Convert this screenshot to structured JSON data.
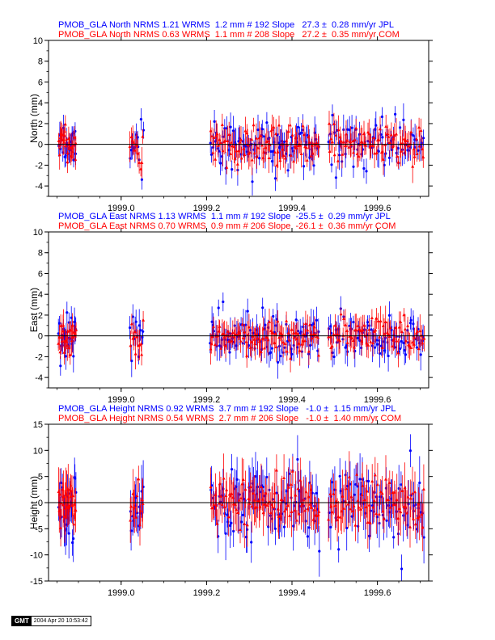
{
  "colors": {
    "jpl": "#0000ff",
    "com": "#ff0000",
    "axis": "#000000"
  },
  "stamp": {
    "logo": "GMT",
    "timestamp": "2004 Apr 20 10:53:42"
  },
  "chart_data": [
    {
      "type": "scatter",
      "component": "North",
      "ylabel": "North (mm)",
      "xlim": [
        1998.83,
        1999.72
      ],
      "ylim": [
        -5,
        10
      ],
      "yticks": [
        "-4",
        "-2",
        "0",
        "2",
        "4",
        "6",
        "8",
        "10"
      ],
      "xticks": [
        "1999.0",
        "1999.2",
        "1999.4",
        "1999.6"
      ],
      "grid": false,
      "series": [
        {
          "label": "PMOB_GLA North NRMS 1.21 WRMS  1.2 mm # 192 Slope   27.3 ±  0.28 mm/yr JPL",
          "color": "blue",
          "marker": "circle",
          "n_points": 192,
          "nrms": 1.21,
          "wrms_mm": 1.2,
          "slope_mm_yr": 27.3,
          "slope_sigma": 0.28
        },
        {
          "label": "PMOB_GLA North NRMS 0.63 WRMS  1.1 mm # 208 Slope   27.2 ±  0.35 mm/yr COM",
          "color": "red",
          "marker": "triangle",
          "n_points": 208,
          "nrms": 0.63,
          "wrms_mm": 1.1,
          "slope_mm_yr": 27.2,
          "slope_sigma": 0.35
        }
      ]
    },
    {
      "type": "scatter",
      "component": "East",
      "ylabel": "East (mm)",
      "xlim": [
        1998.83,
        1999.72
      ],
      "ylim": [
        -5,
        10
      ],
      "yticks": [
        "-4",
        "-2",
        "0",
        "2",
        "4",
        "6",
        "8",
        "10"
      ],
      "xticks": [
        "1999.0",
        "1999.2",
        "1999.4",
        "1999.6"
      ],
      "grid": false,
      "series": [
        {
          "label": "PMOB_GLA East NRMS 1.13 WRMS  1.1 mm # 192 Slope  -25.5 ±  0.29 mm/yr JPL",
          "color": "blue",
          "marker": "circle",
          "n_points": 192,
          "nrms": 1.13,
          "wrms_mm": 1.1,
          "slope_mm_yr": -25.5,
          "slope_sigma": 0.29
        },
        {
          "label": "PMOB_GLA East NRMS 0.70 WRMS  0.9 mm # 206 Slope  -26.1 ±  0.36 mm/yr COM",
          "color": "red",
          "marker": "triangle",
          "n_points": 206,
          "nrms": 0.7,
          "wrms_mm": 0.9,
          "slope_mm_yr": -26.1,
          "slope_sigma": 0.36
        }
      ]
    },
    {
      "type": "scatter",
      "component": "Height",
      "ylabel": "Height (mm)",
      "xlim": [
        1998.83,
        1999.72
      ],
      "ylim": [
        -15,
        15
      ],
      "yticks": [
        "-15",
        "-10",
        "-5",
        "0",
        "5",
        "10",
        "15"
      ],
      "xticks": [
        "1999.0",
        "1999.2",
        "1999.4",
        "1999.6"
      ],
      "grid": false,
      "series": [
        {
          "label": "PMOB_GLA Height NRMS 0.92 WRMS  3.7 mm # 192 Slope   -1.0 ±  1.15 mm/yr JPL",
          "color": "blue",
          "marker": "circle",
          "n_points": 192,
          "nrms": 0.92,
          "wrms_mm": 3.7,
          "slope_mm_yr": -1.0,
          "slope_sigma": 1.15
        },
        {
          "label": "PMOB_GLA Height NRMS 0.54 WRMS  2.7 mm # 206 Slope   -1.0 ±  1.40 mm/yr COM",
          "color": "red",
          "marker": "triangle",
          "n_points": 206,
          "nrms": 0.54,
          "wrms_mm": 2.7,
          "slope_mm_yr": -1.0,
          "slope_sigma": 1.4
        }
      ]
    }
  ]
}
